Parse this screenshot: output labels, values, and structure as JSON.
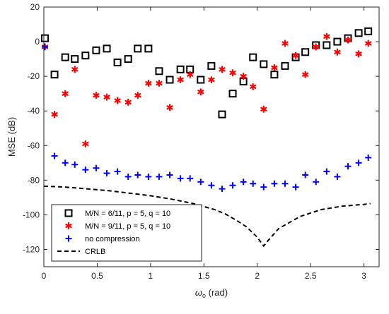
{
  "chart_data": {
    "type": "scatter",
    "title": "",
    "xlabel": "ω",
    "xlabel_sub": "o",
    "xlabel_unit": " (rad)",
    "ylabel": "MSE (dB)",
    "xlim": [
      0,
      3.1416
    ],
    "ylim": [
      -130,
      20
    ],
    "xticks": [
      0,
      0.5,
      1,
      1.5,
      2,
      2.5,
      3
    ],
    "xtick_labels": [
      "0",
      "0.5",
      "1",
      "1.5",
      "2",
      "2.5",
      "3"
    ],
    "yticks": [
      -120,
      -100,
      -80,
      -60,
      -40,
      -20,
      0,
      20
    ],
    "ytick_labels": [
      "-120",
      "-100",
      "-80",
      "-60",
      "-40",
      "-20",
      "0",
      "20"
    ],
    "grid": false,
    "legend_position": "bottom-left",
    "series": [
      {
        "name": "M/N = 6/11,  p = 5,  q = 10",
        "marker": "square",
        "color": "#000000",
        "x": [
          0.01,
          0.1,
          0.2,
          0.29,
          0.39,
          0.49,
          0.59,
          0.69,
          0.79,
          0.88,
          0.98,
          1.08,
          1.18,
          1.28,
          1.37,
          1.47,
          1.57,
          1.67,
          1.77,
          1.87,
          1.96,
          2.06,
          2.16,
          2.26,
          2.36,
          2.45,
          2.55,
          2.65,
          2.75,
          2.85,
          2.95,
          3.04
        ],
        "y": [
          2,
          -19,
          -9,
          -10,
          -8,
          -5,
          -4,
          -12,
          -10,
          -4,
          -4,
          -17,
          -22,
          -16,
          -16,
          -22,
          -14,
          -42,
          -30,
          -23,
          -9,
          -13,
          -19,
          -14,
          -9,
          -6,
          -2,
          -2,
          0,
          2,
          5,
          6
        ]
      },
      {
        "name": "M/N = 9/11, p = 5, q = 10",
        "marker": "asterisk",
        "color": "#ff0000",
        "x": [
          0.01,
          0.1,
          0.2,
          0.29,
          0.39,
          0.49,
          0.59,
          0.69,
          0.79,
          0.88,
          0.98,
          1.08,
          1.18,
          1.28,
          1.37,
          1.47,
          1.57,
          1.67,
          1.77,
          1.87,
          1.96,
          2.06,
          2.16,
          2.26,
          2.36,
          2.45,
          2.55,
          2.65,
          2.75,
          2.85,
          2.95,
          3.04
        ],
        "y": [
          -3,
          -42,
          -30,
          -16,
          -59,
          -31,
          -32,
          -34,
          -35,
          -31,
          -24,
          -24,
          -38,
          -22,
          -19,
          -29,
          -22,
          -16,
          -18,
          -20,
          -26,
          -39,
          -15,
          -1,
          -8,
          -19,
          -3,
          3,
          -6,
          1,
          -7,
          -1
        ]
      },
      {
        "name": "no compression",
        "marker": "plus",
        "color": "#0000ff",
        "x": [
          0.01,
          0.1,
          0.2,
          0.29,
          0.39,
          0.49,
          0.59,
          0.69,
          0.79,
          0.88,
          0.98,
          1.08,
          1.18,
          1.28,
          1.37,
          1.47,
          1.57,
          1.67,
          1.77,
          1.87,
          1.96,
          2.06,
          2.16,
          2.26,
          2.36,
          2.45,
          2.55,
          2.65,
          2.75,
          2.85,
          2.95,
          3.04
        ],
        "y": [
          -3,
          -66,
          -70,
          -71,
          -74,
          -73,
          -76,
          -75,
          -78,
          -77,
          -78,
          -78,
          -77,
          -79,
          -79,
          -81,
          -83,
          -85,
          -83,
          -81,
          -82,
          -84,
          -82,
          -82,
          -84,
          -77,
          -81,
          -75,
          -78,
          -72,
          -70,
          -67
        ]
      },
      {
        "name": "CRLB",
        "marker": "dashed-line",
        "color": "#000000",
        "x": [
          0,
          0.2,
          0.4,
          0.6,
          0.8,
          1.0,
          1.2,
          1.4,
          1.6,
          1.7,
          1.8,
          1.9,
          2.0,
          2.06,
          2.1,
          2.2,
          2.4,
          2.6,
          2.8,
          3.0,
          3.06
        ],
        "y": [
          -83.5,
          -84,
          -85,
          -86,
          -87.5,
          -89,
          -91,
          -93.5,
          -97,
          -99.5,
          -103,
          -107,
          -113,
          -118,
          -115,
          -108,
          -101,
          -97,
          -95,
          -94,
          -93.5
        ]
      }
    ]
  }
}
